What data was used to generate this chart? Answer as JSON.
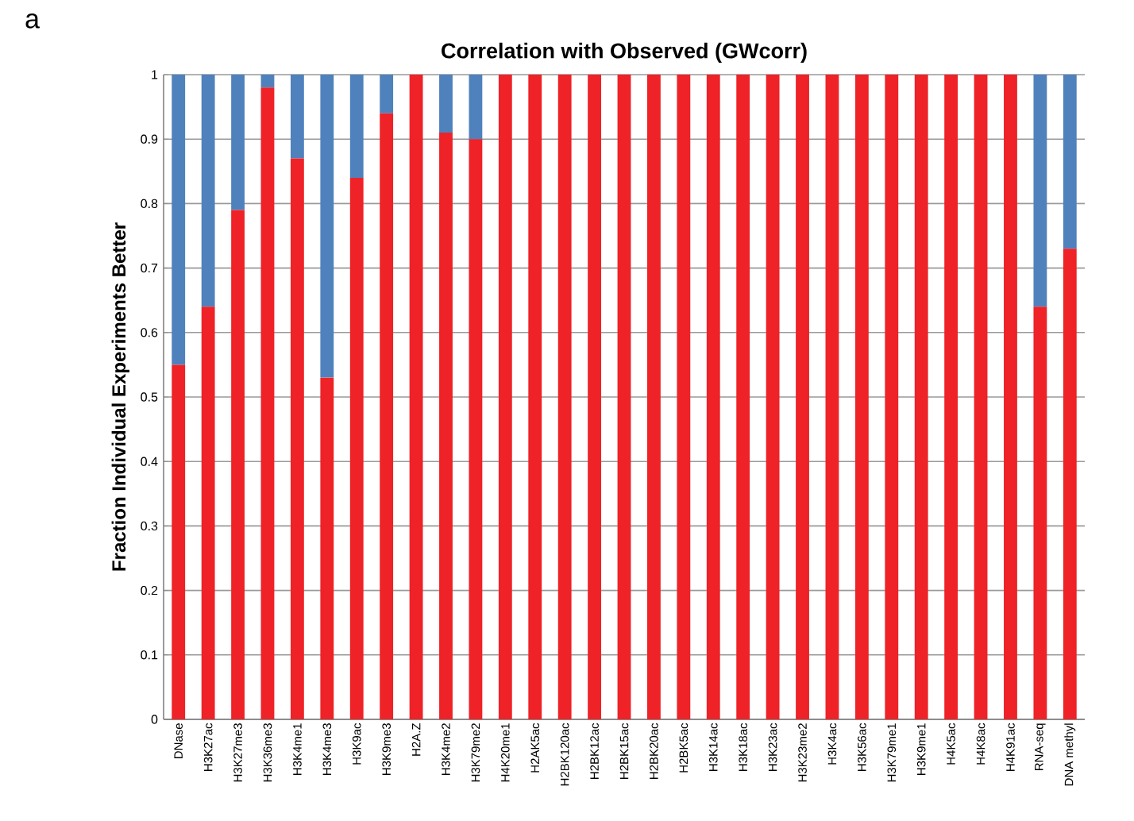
{
  "chart_data": {
    "type": "bar",
    "title": "Correlation with Observed (GWcorr)",
    "ylabel": "Fraction Individual Experiments Better",
    "annotations": [
      "a"
    ],
    "categories": [
      "DNase",
      "H3K27ac",
      "H3K27me3",
      "H3K36me3",
      "H3K4me1",
      "H3K4me3",
      "H3K9ac",
      "H3K9me3",
      "H2A.Z",
      "H3K4me2",
      "H3K79me2",
      "H4K20me1",
      "H2AK5ac",
      "H2BK120ac",
      "H2BK12ac",
      "H2BK15ac",
      "H2BK20ac",
      "H2BK5ac",
      "H3K14ac",
      "H3K18ac",
      "H3K23ac",
      "H3K23me2",
      "H3K4ac",
      "H3K56ac",
      "H3K79me1",
      "H3K9me1",
      "H4K5ac",
      "H4K8ac",
      "H4K91ac",
      "RNA-seq",
      "DNA methyl"
    ],
    "stacked": true,
    "series": [
      {
        "color": "#ee2227",
        "values": [
          0.55,
          0.64,
          0.79,
          0.98,
          0.87,
          0.53,
          0.84,
          0.94,
          1,
          0.91,
          0.9,
          1,
          1,
          1,
          1,
          1,
          1,
          1,
          1,
          1,
          1,
          1,
          1,
          1,
          1,
          1,
          1,
          1,
          1,
          0.64,
          0.73
        ]
      },
      {
        "color": "#4f81bd",
        "values": [
          0.45,
          0.36,
          0.21,
          0.02,
          0.13,
          0.47,
          0.16,
          0.06,
          0,
          0.09,
          0.1,
          0,
          0,
          0,
          0,
          0,
          0,
          0,
          0,
          0,
          0,
          0,
          0,
          0,
          0,
          0,
          0,
          0,
          0,
          0.36,
          0.27
        ]
      }
    ],
    "ylim": [
      0,
      1
    ],
    "yticks": [
      0,
      0.1,
      0.2,
      0.3,
      0.4,
      0.5,
      0.6,
      0.7,
      0.8,
      0.9,
      1
    ],
    "grid": "y"
  }
}
